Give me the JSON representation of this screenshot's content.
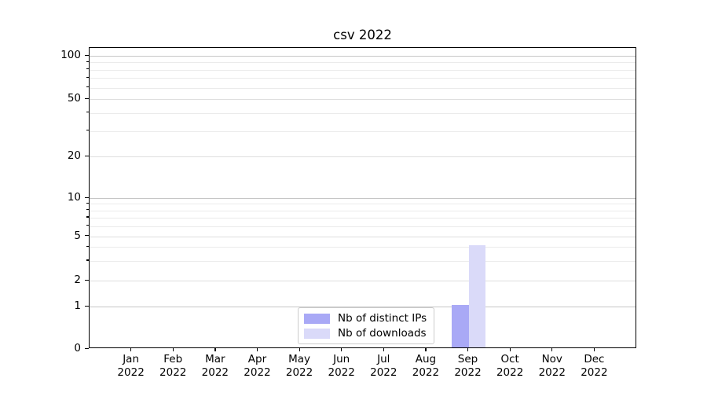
{
  "title": "csv 2022",
  "chart_data": {
    "type": "bar",
    "title": "csv 2022",
    "categories": [
      "Jan",
      "Feb",
      "Mar",
      "Apr",
      "May",
      "Jun",
      "Jul",
      "Aug",
      "Sep",
      "Oct",
      "Nov",
      "Dec"
    ],
    "category_year": "2022",
    "series": [
      {
        "name": "Nb of distinct IPs",
        "color": "#a9a9f6",
        "values": [
          0,
          0,
          0,
          0,
          0,
          0,
          0,
          0,
          1,
          0,
          0,
          0
        ]
      },
      {
        "name": "Nb of downloads",
        "color": "#dadaf9",
        "values": [
          0,
          0,
          0,
          0,
          0,
          0,
          0,
          0,
          4,
          0,
          0,
          0
        ]
      }
    ],
    "y_axis": {
      "scale": "symlog",
      "ticks": [
        0,
        1,
        2,
        5,
        10,
        20,
        50,
        100
      ],
      "minor_ticks": [
        3,
        4,
        6,
        7,
        8,
        9,
        30,
        40,
        60,
        70,
        80,
        90
      ],
      "ylim": [
        0,
        110
      ]
    },
    "legend_position": "lower center",
    "grid": "horizontal"
  }
}
